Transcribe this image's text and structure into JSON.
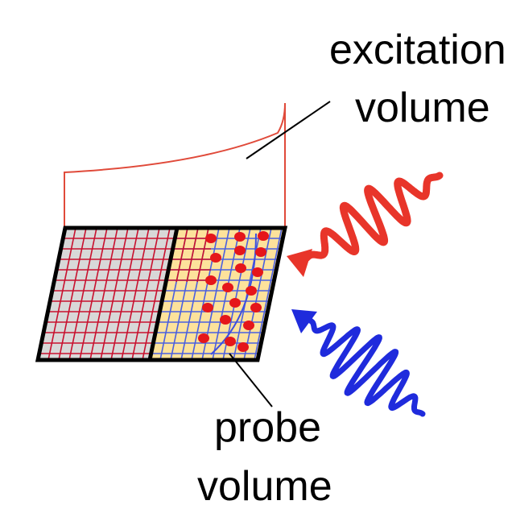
{
  "labels": {
    "excitation_line1": "excitation",
    "excitation_line2": "volume",
    "probe_line1": "probe",
    "probe_line2": "volume"
  },
  "colors": {
    "excitation": "#e8352a",
    "probe": "#1f2bdc",
    "excited_region_fill": "#fde29b",
    "unexcited_region_fill": "#d8d8d8",
    "grid_red": "#c8102e",
    "grid_blue": "#4a5fe0",
    "outline": "#000000"
  },
  "icons": {
    "excitation_pulse": "red-wave-arrow-icon",
    "probe_pulse": "blue-wave-arrow-icon"
  }
}
